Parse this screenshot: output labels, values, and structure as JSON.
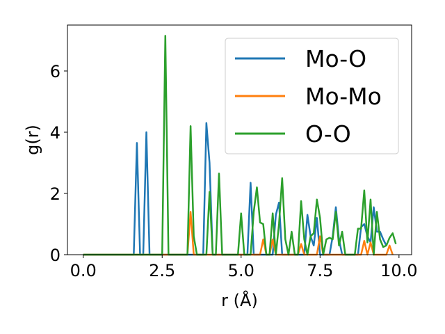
{
  "chart_data": {
    "type": "line",
    "title": "",
    "xlabel": "r (Å)",
    "ylabel": "g(r)",
    "xlim": [
      -0.5,
      10.4
    ],
    "ylim": [
      0,
      7.5
    ],
    "xticks": [
      0.0,
      2.5,
      5.0,
      7.5,
      10.0
    ],
    "xtick_labels": [
      "0.0",
      "2.5",
      "5.0",
      "7.5",
      "10.0"
    ],
    "yticks": [
      0,
      2,
      4,
      6
    ],
    "ytick_labels": [
      "0",
      "2",
      "4",
      "6"
    ],
    "grid": false,
    "legend_position": "top-right",
    "series": [
      {
        "name": "Mo-O",
        "color": "#1f77b4",
        "points": [
          [
            0.0,
            0
          ],
          [
            1.6,
            0
          ],
          [
            1.7,
            3.65
          ],
          [
            1.8,
            0
          ],
          [
            1.9,
            0
          ],
          [
            2.0,
            4.0
          ],
          [
            2.1,
            0
          ],
          [
            3.8,
            0
          ],
          [
            3.9,
            4.3
          ],
          [
            4.0,
            3.0
          ],
          [
            4.1,
            0
          ],
          [
            5.2,
            0
          ],
          [
            5.3,
            2.35
          ],
          [
            5.4,
            0
          ],
          [
            6.0,
            0
          ],
          [
            6.1,
            1.3
          ],
          [
            6.2,
            1.7
          ],
          [
            6.3,
            0
          ],
          [
            7.0,
            0
          ],
          [
            7.1,
            1.3
          ],
          [
            7.2,
            0.6
          ],
          [
            7.3,
            0.3
          ],
          [
            7.4,
            1.2
          ],
          [
            7.5,
            0
          ],
          [
            7.8,
            0
          ],
          [
            7.9,
            0.6
          ],
          [
            8.0,
            1.55
          ],
          [
            8.1,
            0.5
          ],
          [
            8.2,
            0
          ],
          [
            8.7,
            0
          ],
          [
            8.8,
            0.9
          ],
          [
            8.9,
            1.0
          ],
          [
            9.0,
            0.6
          ],
          [
            9.1,
            0.4
          ],
          [
            9.2,
            1.55
          ],
          [
            9.3,
            0.75
          ],
          [
            9.4,
            0.75
          ],
          [
            9.5,
            0.5
          ],
          [
            9.6,
            0.3
          ]
        ]
      },
      {
        "name": "Mo-Mo",
        "color": "#ff7f0e",
        "points": [
          [
            0.0,
            0
          ],
          [
            3.3,
            0
          ],
          [
            3.4,
            1.4
          ],
          [
            3.5,
            0
          ],
          [
            5.6,
            0
          ],
          [
            5.7,
            0.5
          ],
          [
            5.8,
            0
          ],
          [
            5.9,
            0
          ],
          [
            6.0,
            0.5
          ],
          [
            6.1,
            0
          ],
          [
            6.8,
            0
          ],
          [
            6.9,
            0.35
          ],
          [
            7.0,
            0
          ],
          [
            7.4,
            0
          ],
          [
            7.5,
            0.6
          ],
          [
            7.6,
            0
          ],
          [
            8.8,
            0
          ],
          [
            8.9,
            0.45
          ],
          [
            9.0,
            0
          ],
          [
            9.1,
            0.4
          ],
          [
            9.2,
            0
          ],
          [
            9.6,
            0
          ],
          [
            9.7,
            0.3
          ],
          [
            9.8,
            0
          ]
        ]
      },
      {
        "name": "O-O",
        "color": "#2ca02c",
        "points": [
          [
            0.0,
            0
          ],
          [
            2.5,
            0
          ],
          [
            2.6,
            7.15
          ],
          [
            2.7,
            0
          ],
          [
            3.3,
            0
          ],
          [
            3.4,
            4.2
          ],
          [
            3.5,
            0.6
          ],
          [
            3.6,
            0
          ],
          [
            3.9,
            0
          ],
          [
            4.0,
            2.05
          ],
          [
            4.1,
            0
          ],
          [
            4.2,
            0
          ],
          [
            4.3,
            2.65
          ],
          [
            4.4,
            0
          ],
          [
            4.9,
            0
          ],
          [
            5.0,
            1.35
          ],
          [
            5.1,
            0
          ],
          [
            5.3,
            0
          ],
          [
            5.4,
            1.4
          ],
          [
            5.5,
            2.2
          ],
          [
            5.6,
            1.05
          ],
          [
            5.7,
            1.0
          ],
          [
            5.8,
            0
          ],
          [
            5.9,
            0
          ],
          [
            6.0,
            1.35
          ],
          [
            6.1,
            0
          ],
          [
            6.2,
            1.0
          ],
          [
            6.3,
            2.5
          ],
          [
            6.4,
            0.5
          ],
          [
            6.5,
            0
          ],
          [
            6.6,
            0.75
          ],
          [
            6.7,
            0
          ],
          [
            6.8,
            0
          ],
          [
            6.9,
            1.75
          ],
          [
            7.0,
            0.5
          ],
          [
            7.1,
            0
          ],
          [
            7.2,
            0.6
          ],
          [
            7.3,
            0.7
          ],
          [
            7.4,
            1.8
          ],
          [
            7.5,
            1.2
          ],
          [
            7.6,
            0
          ],
          [
            7.7,
            0.5
          ],
          [
            7.8,
            0.55
          ],
          [
            7.9,
            0.5
          ],
          [
            8.0,
            1.4
          ],
          [
            8.1,
            0.3
          ],
          [
            8.2,
            0.75
          ],
          [
            8.3,
            0
          ],
          [
            8.6,
            0
          ],
          [
            8.7,
            0.85
          ],
          [
            8.8,
            0.85
          ],
          [
            8.9,
            2.1
          ],
          [
            9.0,
            0.4
          ],
          [
            9.1,
            1.8
          ],
          [
            9.2,
            0
          ],
          [
            9.3,
            1.4
          ],
          [
            9.4,
            0.5
          ],
          [
            9.5,
            0.25
          ],
          [
            9.6,
            0.3
          ],
          [
            9.7,
            0.55
          ],
          [
            9.8,
            0.7
          ],
          [
            9.9,
            0.35
          ]
        ]
      }
    ]
  }
}
